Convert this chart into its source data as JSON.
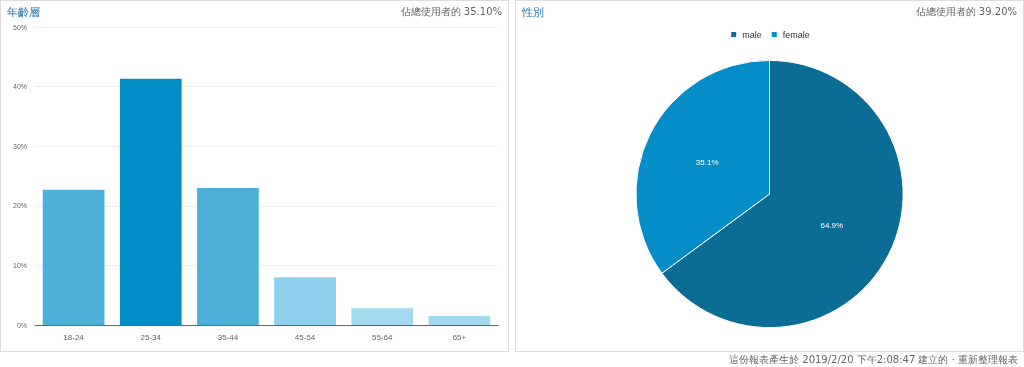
{
  "chart_data": [
    {
      "type": "bar",
      "title": "年齡層",
      "subtitle": "佔總使用者的 35.10%",
      "categories": [
        "18-24",
        "25-34",
        "35-44",
        "45-54",
        "55-64",
        "65+"
      ],
      "values": [
        22.7,
        41.3,
        23.0,
        8.0,
        2.8,
        1.5
      ],
      "colors": [
        "#4eafdb",
        "#058dc7",
        "#4eafdb",
        "#8ed0ec",
        "#a3d9ef",
        "#a3d9ef"
      ],
      "ylim": [
        0,
        50
      ],
      "yticks": [
        {
          "value": 0,
          "label": "0%"
        },
        {
          "value": 10,
          "label": "10%"
        },
        {
          "value": 20,
          "label": "20%"
        },
        {
          "value": 30,
          "label": "30%"
        },
        {
          "value": 40,
          "label": "40%"
        },
        {
          "value": 50,
          "label": "50%"
        }
      ],
      "grid": "y"
    },
    {
      "type": "pie",
      "title": "性別",
      "subtitle": "佔總使用者的 39.20%",
      "categories": [
        "male",
        "female"
      ],
      "values": [
        64.9,
        35.1
      ],
      "colors": [
        "#0b6d96",
        "#058dc7"
      ],
      "value_labels": [
        "64.9%",
        "35.1%"
      ],
      "legend": "top",
      "annotations": [
        "這份報表產生於 2019/2/20 下午2:08:47 建立的 · 重新整理報表"
      ]
    }
  ]
}
